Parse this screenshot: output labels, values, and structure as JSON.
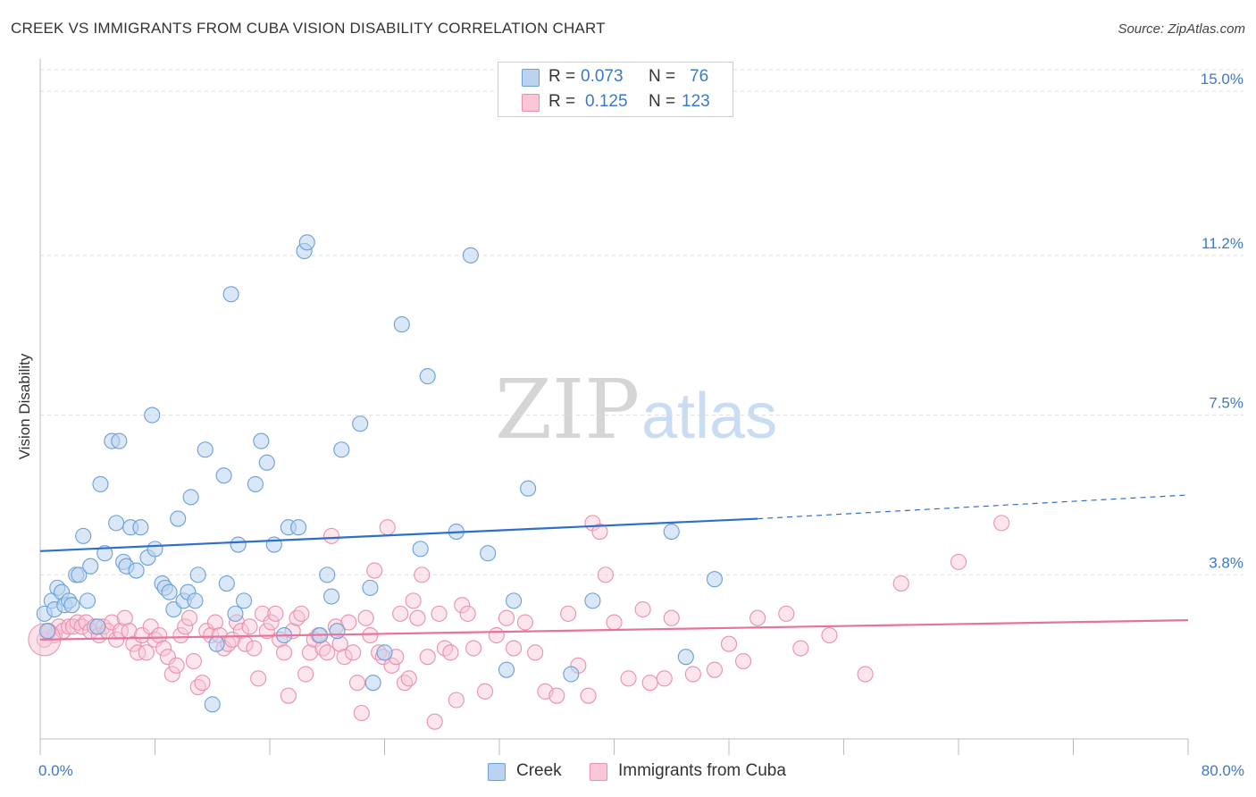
{
  "title": "CREEK VS IMMIGRANTS FROM CUBA VISION DISABILITY CORRELATION CHART",
  "source": "Source: ZipAtlas.com",
  "watermark": {
    "zip": "ZIP",
    "atlas": "atlas"
  },
  "legend": {
    "r_label": "R =",
    "n_label": "N =",
    "rows": [
      {
        "r": "0.073",
        "n": "76"
      },
      {
        "r": "0.125",
        "n": "123"
      }
    ]
  },
  "colors": {
    "creek_fill": "#b9d3f1",
    "creek_stroke": "#6a9fd9",
    "creek_line": "#2f6fcc",
    "cuba_fill": "#f8c6d5",
    "cuba_stroke": "#ea8fae",
    "cuba_line": "#e6739a",
    "grid": "#dddddd",
    "axis_text": "#3b78c8"
  },
  "chart_data": {
    "type": "scatter",
    "title": "CREEK VS IMMIGRANTS FROM CUBA VISION DISABILITY CORRELATION CHART",
    "xlabel": "",
    "ylabel": "Vision Disability",
    "xlim": [
      0,
      80
    ],
    "ylim": [
      0,
      15.5
    ],
    "x_tick_labels": [
      "0.0%",
      "80.0%"
    ],
    "y_ticks": [
      {
        "value": 3.8,
        "label": "3.8%"
      },
      {
        "value": 7.5,
        "label": "7.5%"
      },
      {
        "value": 11.2,
        "label": "11.2%"
      },
      {
        "value": 15.0,
        "label": "15.0%"
      }
    ],
    "grid": "horizontal dashed",
    "legend_position": "top-center",
    "series": [
      {
        "name": "Creek",
        "R": 0.073,
        "N": 76,
        "trend": {
          "x0": 0,
          "y0": 4.35,
          "x1": 50,
          "y1": 5.1,
          "dashed_to_x": 80,
          "dashed_to_y": 5.65
        },
        "points": [
          [
            0.3,
            2.9
          ],
          [
            0.5,
            2.5
          ],
          [
            0.8,
            3.2
          ],
          [
            1.0,
            3.0
          ],
          [
            1.2,
            3.5
          ],
          [
            1.5,
            3.4
          ],
          [
            1.7,
            3.1
          ],
          [
            2.0,
            3.2
          ],
          [
            2.2,
            3.1
          ],
          [
            2.5,
            3.8
          ],
          [
            2.7,
            3.8
          ],
          [
            3.0,
            4.7
          ],
          [
            3.3,
            3.2
          ],
          [
            3.5,
            4.0
          ],
          [
            4.0,
            2.6
          ],
          [
            4.2,
            5.9
          ],
          [
            4.5,
            4.3
          ],
          [
            5.0,
            6.9
          ],
          [
            5.3,
            5.0
          ],
          [
            5.5,
            6.9
          ],
          [
            5.8,
            4.1
          ],
          [
            6.0,
            4.0
          ],
          [
            6.3,
            4.9
          ],
          [
            6.7,
            3.9
          ],
          [
            7.0,
            4.9
          ],
          [
            7.5,
            4.2
          ],
          [
            7.8,
            7.5
          ],
          [
            8.0,
            4.4
          ],
          [
            8.5,
            3.6
          ],
          [
            8.7,
            3.5
          ],
          [
            9.0,
            3.4
          ],
          [
            9.3,
            3.0
          ],
          [
            9.6,
            5.1
          ],
          [
            10.0,
            3.2
          ],
          [
            10.3,
            3.4
          ],
          [
            10.5,
            5.6
          ],
          [
            10.8,
            3.2
          ],
          [
            11.0,
            3.8
          ],
          [
            11.5,
            6.7
          ],
          [
            12.0,
            0.8
          ],
          [
            12.3,
            2.2
          ],
          [
            12.8,
            6.1
          ],
          [
            13.0,
            3.6
          ],
          [
            13.3,
            10.3
          ],
          [
            13.6,
            2.9
          ],
          [
            13.8,
            4.5
          ],
          [
            14.2,
            3.2
          ],
          [
            15.0,
            5.9
          ],
          [
            15.4,
            6.9
          ],
          [
            15.8,
            6.4
          ],
          [
            16.3,
            4.5
          ],
          [
            17.0,
            2.4
          ],
          [
            17.3,
            4.9
          ],
          [
            18.0,
            4.9
          ],
          [
            18.4,
            11.3
          ],
          [
            18.6,
            11.5
          ],
          [
            19.5,
            2.4
          ],
          [
            20.0,
            3.8
          ],
          [
            20.3,
            3.3
          ],
          [
            20.7,
            2.5
          ],
          [
            21.0,
            6.7
          ],
          [
            22.3,
            7.3
          ],
          [
            23.0,
            3.5
          ],
          [
            23.2,
            1.3
          ],
          [
            24.0,
            2.0
          ],
          [
            25.2,
            9.6
          ],
          [
            26.5,
            4.4
          ],
          [
            27.0,
            8.4
          ],
          [
            29.0,
            4.8
          ],
          [
            30.0,
            11.2
          ],
          [
            31.2,
            4.3
          ],
          [
            32.5,
            1.6
          ],
          [
            33.0,
            3.2
          ],
          [
            34.0,
            5.8
          ],
          [
            37.0,
            1.5
          ],
          [
            38.5,
            3.2
          ],
          [
            44.0,
            4.8
          ],
          [
            45.0,
            1.9
          ],
          [
            47.0,
            3.7
          ]
        ]
      },
      {
        "name": "Immigrants from Cuba",
        "R": 0.125,
        "N": 123,
        "trend": {
          "x0": 0,
          "y0": 2.3,
          "x1": 80,
          "y1": 2.75
        },
        "points": [
          [
            0.3,
            2.3
          ],
          [
            0.6,
            2.5
          ],
          [
            1.0,
            2.4
          ],
          [
            1.3,
            2.6
          ],
          [
            1.6,
            2.5
          ],
          [
            2.0,
            2.6
          ],
          [
            2.3,
            2.6
          ],
          [
            2.6,
            2.7
          ],
          [
            2.9,
            2.6
          ],
          [
            3.2,
            2.7
          ],
          [
            3.5,
            2.5
          ],
          [
            3.8,
            2.6
          ],
          [
            4.1,
            2.4
          ],
          [
            4.4,
            2.6
          ],
          [
            4.7,
            2.5
          ],
          [
            5.0,
            2.7
          ],
          [
            5.3,
            2.3
          ],
          [
            5.6,
            2.5
          ],
          [
            5.9,
            2.8
          ],
          [
            6.2,
            2.5
          ],
          [
            6.5,
            2.2
          ],
          [
            6.8,
            2.0
          ],
          [
            7.1,
            2.4
          ],
          [
            7.4,
            2.0
          ],
          [
            7.7,
            2.6
          ],
          [
            8.0,
            2.3
          ],
          [
            8.3,
            2.4
          ],
          [
            8.6,
            2.1
          ],
          [
            8.9,
            1.9
          ],
          [
            9.2,
            1.5
          ],
          [
            9.5,
            1.7
          ],
          [
            9.8,
            2.4
          ],
          [
            10.1,
            2.6
          ],
          [
            10.4,
            2.8
          ],
          [
            10.7,
            1.8
          ],
          [
            11.0,
            1.2
          ],
          [
            11.3,
            1.3
          ],
          [
            11.6,
            2.5
          ],
          [
            11.9,
            2.4
          ],
          [
            12.2,
            2.7
          ],
          [
            12.5,
            2.4
          ],
          [
            12.8,
            2.1
          ],
          [
            13.1,
            2.2
          ],
          [
            13.4,
            2.3
          ],
          [
            13.7,
            2.7
          ],
          [
            14.0,
            2.5
          ],
          [
            14.3,
            2.2
          ],
          [
            14.6,
            2.6
          ],
          [
            14.9,
            2.1
          ],
          [
            15.2,
            1.4
          ],
          [
            15.5,
            2.9
          ],
          [
            15.8,
            2.5
          ],
          [
            16.1,
            2.7
          ],
          [
            16.4,
            2.9
          ],
          [
            16.7,
            2.3
          ],
          [
            17.0,
            2.0
          ],
          [
            17.3,
            1.0
          ],
          [
            17.6,
            2.5
          ],
          [
            17.9,
            2.8
          ],
          [
            18.2,
            2.9
          ],
          [
            18.5,
            1.5
          ],
          [
            18.8,
            2.0
          ],
          [
            19.1,
            2.3
          ],
          [
            19.4,
            2.4
          ],
          [
            19.7,
            2.1
          ],
          [
            20.0,
            2.0
          ],
          [
            20.3,
            4.7
          ],
          [
            20.6,
            2.6
          ],
          [
            20.9,
            2.2
          ],
          [
            21.2,
            1.9
          ],
          [
            21.5,
            2.7
          ],
          [
            21.8,
            2.0
          ],
          [
            22.1,
            1.3
          ],
          [
            22.4,
            0.6
          ],
          [
            22.7,
            2.8
          ],
          [
            23.0,
            2.4
          ],
          [
            23.3,
            3.9
          ],
          [
            23.6,
            2.0
          ],
          [
            23.9,
            1.9
          ],
          [
            24.2,
            4.9
          ],
          [
            24.5,
            1.7
          ],
          [
            24.8,
            1.9
          ],
          [
            25.1,
            2.9
          ],
          [
            25.4,
            1.3
          ],
          [
            25.7,
            1.4
          ],
          [
            26.0,
            3.2
          ],
          [
            26.3,
            2.8
          ],
          [
            26.6,
            3.8
          ],
          [
            27.0,
            1.9
          ],
          [
            27.5,
            0.4
          ],
          [
            27.8,
            2.9
          ],
          [
            28.2,
            2.1
          ],
          [
            28.6,
            2.0
          ],
          [
            29.0,
            0.9
          ],
          [
            29.4,
            3.1
          ],
          [
            29.8,
            2.9
          ],
          [
            30.2,
            2.1
          ],
          [
            31.0,
            1.1
          ],
          [
            31.8,
            2.4
          ],
          [
            32.5,
            2.8
          ],
          [
            33.0,
            2.1
          ],
          [
            33.8,
            2.7
          ],
          [
            34.5,
            2.0
          ],
          [
            35.2,
            1.1
          ],
          [
            36.0,
            1.0
          ],
          [
            36.8,
            2.9
          ],
          [
            37.5,
            1.7
          ],
          [
            38.2,
            1.0
          ],
          [
            38.5,
            5.0
          ],
          [
            39.0,
            4.8
          ],
          [
            39.4,
            3.8
          ],
          [
            40.0,
            2.7
          ],
          [
            41.0,
            1.4
          ],
          [
            42.0,
            3.0
          ],
          [
            42.5,
            1.3
          ],
          [
            43.5,
            1.4
          ],
          [
            44.0,
            2.8
          ],
          [
            45.5,
            1.5
          ],
          [
            47.0,
            1.6
          ],
          [
            48.0,
            2.2
          ],
          [
            49.0,
            1.8
          ],
          [
            50.0,
            2.8
          ],
          [
            52.0,
            2.9
          ],
          [
            53.0,
            2.1
          ],
          [
            55.0,
            2.4
          ],
          [
            57.5,
            1.5
          ],
          [
            60.0,
            3.6
          ],
          [
            64.0,
            4.1
          ],
          [
            67.0,
            5.0
          ]
        ]
      }
    ]
  }
}
